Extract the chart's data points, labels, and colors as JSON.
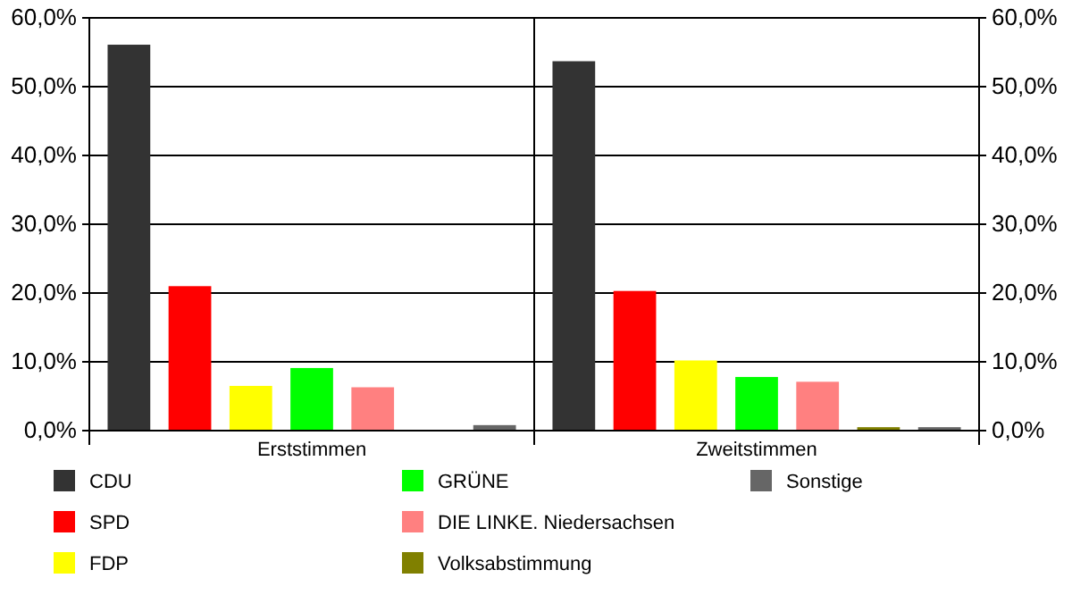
{
  "chart_data": {
    "type": "bar",
    "categories": [
      "Erststimmen",
      "Zweitstimmen"
    ],
    "series": [
      {
        "name": "CDU",
        "color": "#333333",
        "values": [
          56.1,
          53.7
        ]
      },
      {
        "name": "SPD",
        "color": "#ff0000",
        "values": [
          21.0,
          20.3
        ]
      },
      {
        "name": "FDP",
        "color": "#ffff00",
        "values": [
          6.5,
          10.2
        ]
      },
      {
        "name": "GRÜNE",
        "color": "#00ff00",
        "values": [
          9.1,
          7.8
        ]
      },
      {
        "name": "DIE LINKE. Niedersachsen",
        "color": "#ff8080",
        "values": [
          6.3,
          7.1
        ]
      },
      {
        "name": "Volksabstimmung",
        "color": "#808000",
        "values": [
          null,
          0.5
        ]
      },
      {
        "name": "Sonstige",
        "color": "#666666",
        "values": [
          0.8,
          0.5
        ]
      }
    ],
    "ylim": [
      0,
      60
    ],
    "yticks": [
      {
        "value": 0,
        "label": "0,0%"
      },
      {
        "value": 10,
        "label": "10,0%"
      },
      {
        "value": 20,
        "label": "20,0%"
      },
      {
        "value": 30,
        "label": "30,0%"
      },
      {
        "value": 40,
        "label": "40,0%"
      },
      {
        "value": 50,
        "label": "50,0%"
      },
      {
        "value": 60,
        "label": "60,0%"
      }
    ],
    "y2lim": [
      0,
      60
    ],
    "y2ticks": [
      {
        "value": 0,
        "label": "0,0%"
      },
      {
        "value": 10,
        "label": "10,0%"
      },
      {
        "value": 20,
        "label": "20,0%"
      },
      {
        "value": 30,
        "label": "30,0%"
      },
      {
        "value": 40,
        "label": "40,0%"
      },
      {
        "value": 50,
        "label": "50,0%"
      },
      {
        "value": 60,
        "label": "60,0%"
      }
    ],
    "grid": "y",
    "legend": "bottom"
  }
}
